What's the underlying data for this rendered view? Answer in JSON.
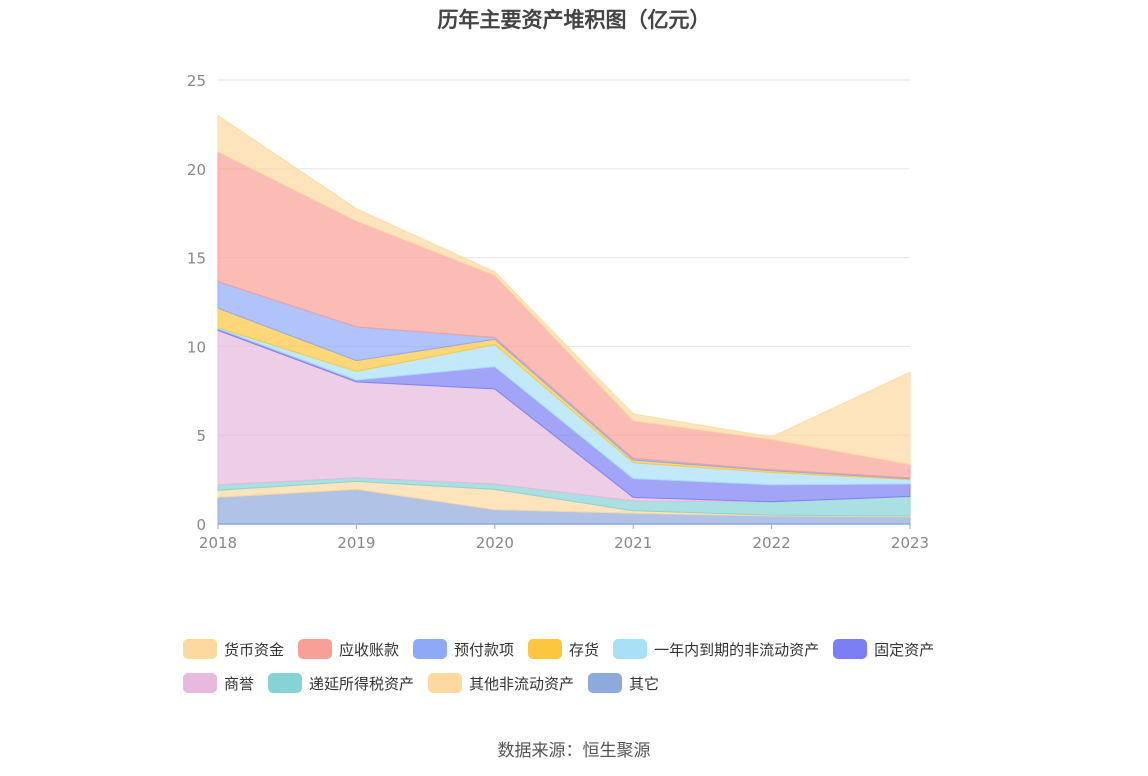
{
  "chart_data": {
    "type": "area",
    "stacked": true,
    "title": "历年主要资产堆积图（亿元）",
    "x": [
      "2018",
      "2019",
      "2020",
      "2021",
      "2022",
      "2023"
    ],
    "ylim": [
      0,
      25
    ],
    "yticks": [
      0,
      5,
      10,
      15,
      20,
      25
    ],
    "grid": true,
    "legend_position": "bottom",
    "series": [
      {
        "name": "其它",
        "color": "#8eaadb",
        "values": [
          1.5,
          1.95,
          0.8,
          0.6,
          0.45,
          0.4
        ]
      },
      {
        "name": "其他非流动资产",
        "color": "#fdd9a0",
        "values": [
          0.4,
          0.45,
          1.15,
          0.15,
          0.05,
          0.05
        ]
      },
      {
        "name": "递延所得税资产",
        "color": "#86d3d6",
        "values": [
          0.3,
          0.2,
          0.3,
          0.55,
          0.75,
          1.1
        ]
      },
      {
        "name": "商誉",
        "color": "#e7b9dc",
        "values": [
          8.7,
          5.4,
          5.35,
          0.2,
          0.0,
          0.0
        ]
      },
      {
        "name": "固定资产",
        "color": "#7b7ef5",
        "values": [
          0.1,
          0.1,
          1.25,
          1.05,
          0.95,
          0.7
        ]
      },
      {
        "name": "一年内到期的非流动资产",
        "color": "#a8e0f8",
        "values": [
          0.05,
          0.5,
          1.25,
          0.9,
          0.7,
          0.25
        ]
      },
      {
        "name": "存货",
        "color": "#fcc63e",
        "values": [
          1.1,
          0.6,
          0.3,
          0.15,
          0.1,
          0.05
        ]
      },
      {
        "name": "预付款项",
        "color": "#8ea9f8",
        "values": [
          1.5,
          1.9,
          0.1,
          0.1,
          0.05,
          0.05
        ]
      },
      {
        "name": "应收账款",
        "color": "#f9a096",
        "values": [
          7.3,
          5.95,
          3.5,
          2.1,
          1.7,
          0.75
        ]
      },
      {
        "name": "货币资金",
        "color": "#fdd9a0",
        "values": [
          2.05,
          0.7,
          0.2,
          0.4,
          0.15,
          5.2
        ]
      }
    ]
  },
  "source_note": "数据来源：恒生聚源"
}
